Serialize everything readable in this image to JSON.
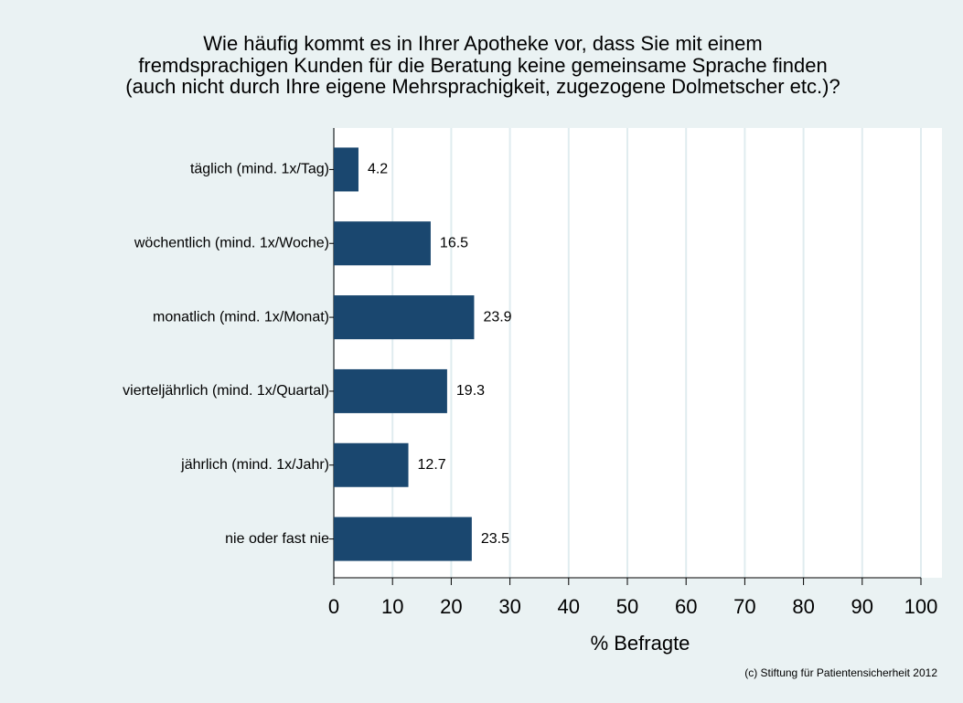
{
  "chart_data": {
    "type": "bar",
    "orientation": "horizontal",
    "title": [
      "Wie häufig kommt es in Ihrer Apotheke vor, dass Sie mit einem",
      "fremdsprachigen Kunden für die Beratung keine gemeinsame Sprache finden",
      "(auch nicht durch Ihre eigene Mehrsprachigkeit, zugezogene Dolmetscher etc.)?"
    ],
    "categories": [
      "täglich (mind. 1x/Tag)",
      "wöchentlich (mind. 1x/Woche)",
      "monatlich (mind. 1x/Monat)",
      "vierteljährlich (mind. 1x/Quartal)",
      "jährlich (mind. 1x/Jahr)",
      "nie oder fast nie"
    ],
    "values": [
      4.2,
      16.5,
      23.9,
      19.3,
      12.7,
      23.5
    ],
    "color": "#1a476f",
    "xlabel": "% Befragte",
    "xlim": [
      0,
      100
    ],
    "xticks": [
      0,
      10,
      20,
      30,
      40,
      50,
      60,
      70,
      80,
      90,
      100
    ],
    "grid": true,
    "note": "(c) Stiftung für Patientensicherheit 2012"
  }
}
